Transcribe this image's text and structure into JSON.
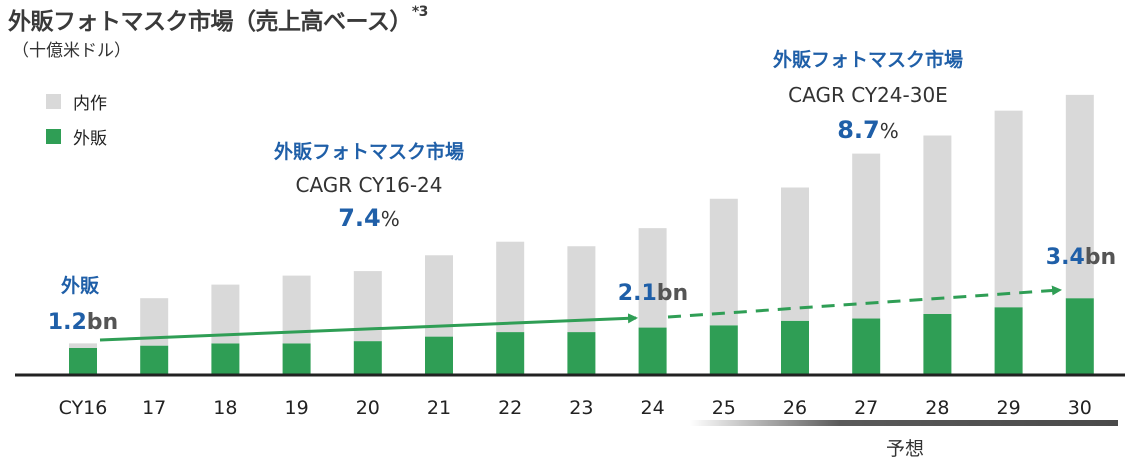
{
  "chart_data": {
    "type": "bar",
    "title": "外販フォトマスク市場（売上高ベース）",
    "title_note": "*3",
    "unit": "（十億米ドル）",
    "categories": [
      "CY16",
      "17",
      "18",
      "19",
      "20",
      "21",
      "22",
      "23",
      "24",
      "25",
      "26",
      "27",
      "28",
      "29",
      "30"
    ],
    "stacked": true,
    "series": [
      {
        "name": "外販",
        "color": "#2f9e55",
        "values": [
          1.2,
          1.3,
          1.4,
          1.4,
          1.5,
          1.7,
          1.9,
          1.9,
          2.1,
          2.2,
          2.4,
          2.5,
          2.7,
          3.0,
          3.4
        ]
      },
      {
        "name": "内作",
        "color": "#d9d9d9",
        "values": [
          0.2,
          2.1,
          2.6,
          3.0,
          3.1,
          3.6,
          4.0,
          3.8,
          4.4,
          5.6,
          5.9,
          7.3,
          7.9,
          8.7,
          9.0
        ]
      }
    ],
    "ylim": [
      0,
      13.5
    ],
    "annotations": {
      "start_label": "外販",
      "start_value": "1.2",
      "mid_value": "2.1",
      "end_value": "3.4",
      "unit_suffix": "bn",
      "cagr1_title": "外販フォトマスク市場",
      "cagr1_period": "CAGR CY16-24",
      "cagr1_value": "7.4",
      "cagr2_title": "外販フォトマスク市場",
      "cagr2_period": "CAGR CY24-30E",
      "cagr2_value": "8.7",
      "percent": "%",
      "forecast_label": "予想"
    },
    "colors": {
      "accent_blue": "#1f5fa8",
      "arrow_green": "#2f9e55",
      "axis": "#222222"
    }
  }
}
